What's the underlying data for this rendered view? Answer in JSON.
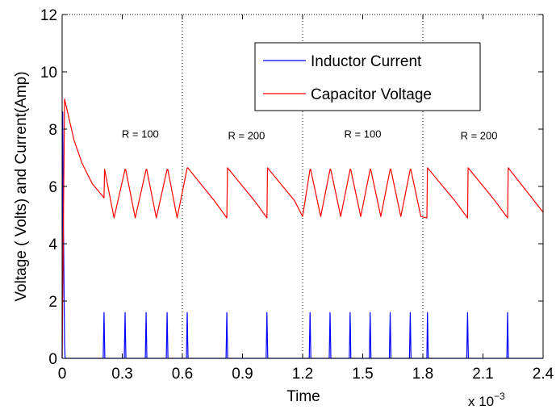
{
  "chart_data": {
    "type": "line",
    "title": "",
    "xlabel": "Time",
    "ylabel": "Voltage ( Volts) and Current(Amp)",
    "x_multiplier": "x 10",
    "x_multiplier_exp": "−3",
    "xlim": [
      0,
      2.4
    ],
    "ylim": [
      0,
      12
    ],
    "x_ticks": [
      0,
      0.3,
      0.6,
      0.9,
      1.2,
      1.5,
      1.8,
      2.1,
      2.4
    ],
    "x_tick_labels": [
      "0",
      "0.3",
      "0.6",
      "0.9",
      "1.2",
      "1.5",
      "1.8",
      "2.1",
      "2.4"
    ],
    "y_ticks": [
      0,
      2,
      4,
      6,
      8,
      10,
      12
    ],
    "y_tick_labels": [
      "0",
      "2",
      "4",
      "6",
      "8",
      "10",
      "12"
    ],
    "grid": false,
    "legend_position": "top-right",
    "dividers": [
      0.6,
      1.2,
      1.8
    ],
    "annotations": [
      {
        "text": "R = 100",
        "x": 0.39,
        "y": 7.7
      },
      {
        "text": "R = 200",
        "x": 0.92,
        "y": 7.65
      },
      {
        "text": "R = 100",
        "x": 1.5,
        "y": 7.7
      },
      {
        "text": "R = 200",
        "x": 2.08,
        "y": 7.65
      }
    ],
    "series": [
      {
        "name": "Capacitor Voltage",
        "color": "#ff0000",
        "x": [
          0,
          0.012,
          0.03,
          0.06,
          0.1,
          0.15,
          0.209,
          0.212,
          0.259,
          0.314,
          0.317,
          0.365,
          0.419,
          0.422,
          0.47,
          0.524,
          0.527,
          0.574,
          0.624,
          0.627,
          0.76,
          0.822,
          0.825,
          0.96,
          1.022,
          1.025,
          1.16,
          1.2,
          1.237,
          1.24,
          1.29,
          1.337,
          1.34,
          1.39,
          1.437,
          1.44,
          1.49,
          1.537,
          1.54,
          1.59,
          1.637,
          1.64,
          1.69,
          1.737,
          1.74,
          1.79,
          1.82,
          1.823,
          1.96,
          2.023,
          2.026,
          2.16,
          2.223,
          2.226,
          2.4
        ],
        "values": [
          0,
          9.05,
          8.5,
          7.6,
          6.8,
          6.1,
          5.6,
          6.6,
          4.9,
          6.6,
          6.6,
          4.9,
          6.6,
          6.6,
          4.9,
          6.6,
          6.6,
          4.9,
          6.65,
          6.65,
          5.5,
          4.9,
          6.65,
          5.5,
          4.9,
          6.65,
          5.5,
          4.95,
          6.6,
          6.6,
          4.95,
          6.6,
          6.6,
          4.95,
          6.6,
          6.6,
          4.95,
          6.6,
          6.6,
          4.95,
          6.6,
          6.6,
          4.95,
          6.6,
          6.6,
          4.95,
          4.9,
          6.65,
          5.5,
          4.9,
          6.65,
          5.5,
          4.9,
          6.65,
          5.1
        ]
      },
      {
        "name": "Inductor Current",
        "color": "#0000ff",
        "x": [
          0,
          0.003,
          0.006,
          0.012,
          0.015,
          0.205,
          0.209,
          0.213,
          0.31,
          0.314,
          0.318,
          0.415,
          0.419,
          0.423,
          0.52,
          0.524,
          0.528,
          0.62,
          0.624,
          0.628,
          0.818,
          0.822,
          0.826,
          1.018,
          1.022,
          1.026,
          1.233,
          1.237,
          1.241,
          1.333,
          1.337,
          1.341,
          1.433,
          1.437,
          1.441,
          1.533,
          1.537,
          1.541,
          1.633,
          1.637,
          1.641,
          1.733,
          1.737,
          1.741,
          1.82,
          1.823,
          1.827,
          2.019,
          2.023,
          2.027,
          2.219,
          2.223,
          2.227,
          2.4
        ],
        "values": [
          0,
          8.6,
          5.0,
          0.5,
          0,
          0,
          1.6,
          0,
          0,
          1.6,
          0,
          0,
          1.6,
          0,
          0,
          1.6,
          0,
          0,
          1.6,
          0,
          0,
          1.6,
          0,
          0,
          1.6,
          0,
          0,
          1.6,
          0,
          0,
          1.6,
          0,
          0,
          1.6,
          0,
          0,
          1.6,
          0,
          0,
          1.6,
          0,
          0,
          1.6,
          0,
          0,
          1.6,
          0,
          0,
          1.6,
          0,
          0,
          1.6,
          0,
          0
        ]
      }
    ],
    "legend": [
      {
        "label": "Inductor Current",
        "color": "#0000ff"
      },
      {
        "label": "Capacitor Voltage",
        "color": "#ff0000"
      }
    ]
  }
}
